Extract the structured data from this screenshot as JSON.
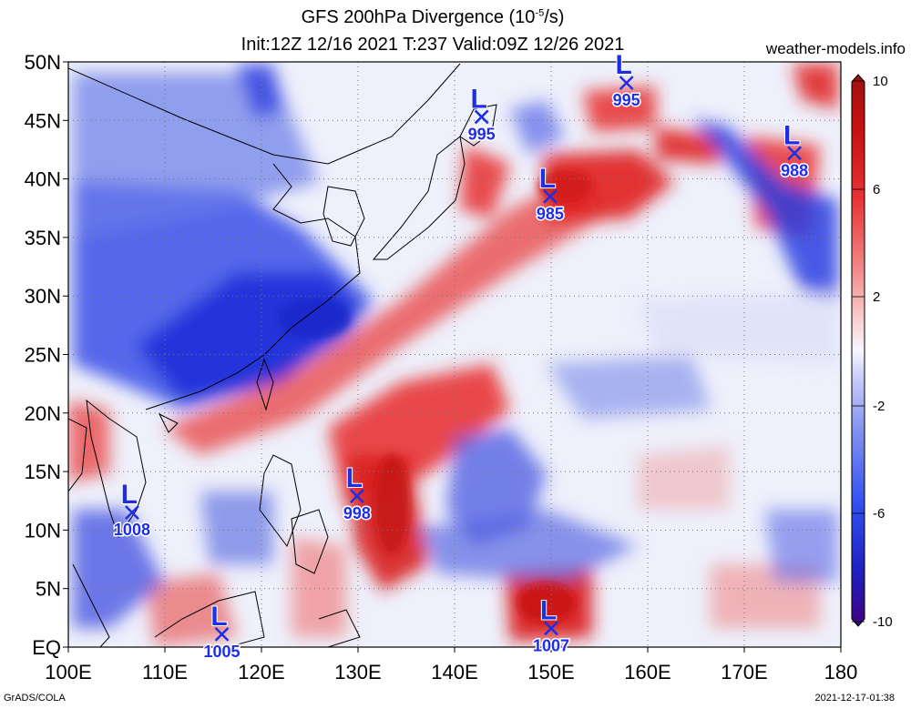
{
  "title": {
    "line1": "GFS 200hPa Divergence (10",
    "line1_sup": "-5",
    "line1_end": "/s)",
    "line2": "Init:12Z 12/16 2021 T:237 Valid:09Z 12/26 2021"
  },
  "site": "weather-models.info",
  "footer": {
    "left": "GrADS/COLA",
    "right": "2021-12-17-01:38"
  },
  "map": {
    "lon_range": [
      100,
      180
    ],
    "lat_range": [
      0,
      50
    ],
    "lon_labels": [
      "100E",
      "110E",
      "120E",
      "130E",
      "140E",
      "150E",
      "160E",
      "170E",
      "180"
    ],
    "lat_labels": [
      "EQ",
      "5N",
      "10N",
      "15N",
      "20N",
      "25N",
      "30N",
      "35N",
      "40N",
      "45N",
      "50N"
    ],
    "lows": [
      {
        "lon": 157.8,
        "lat": 48.2,
        "pressure": "995"
      },
      {
        "lon": 142.8,
        "lat": 45.3,
        "pressure": "995"
      },
      {
        "lon": 175.2,
        "lat": 42.2,
        "pressure": "988"
      },
      {
        "lon": 149.9,
        "lat": 38.5,
        "pressure": "985"
      },
      {
        "lon": 129.9,
        "lat": 12.9,
        "pressure": "998"
      },
      {
        "lon": 106.6,
        "lat": 11.5,
        "pressure": "1008"
      },
      {
        "lon": 115.9,
        "lat": 1.1,
        "pressure": "1005"
      },
      {
        "lon": 150.0,
        "lat": 1.6,
        "pressure": "1007"
      }
    ]
  },
  "colorbar": {
    "labels": [
      "10",
      "6",
      "2",
      "-2",
      "-6",
      "-10"
    ],
    "colors": [
      "#400080",
      "#2020c0",
      "#3060f0",
      "#8090f0",
      "#c0c8f8",
      "#f4f4ff",
      "#f8d0d0",
      "#f08080",
      "#e83030",
      "#c01010",
      "#a01010"
    ]
  },
  "colors": {
    "low_marker": "#1e2ee6",
    "red": "#e82020",
    "blue": "#2030e0"
  }
}
